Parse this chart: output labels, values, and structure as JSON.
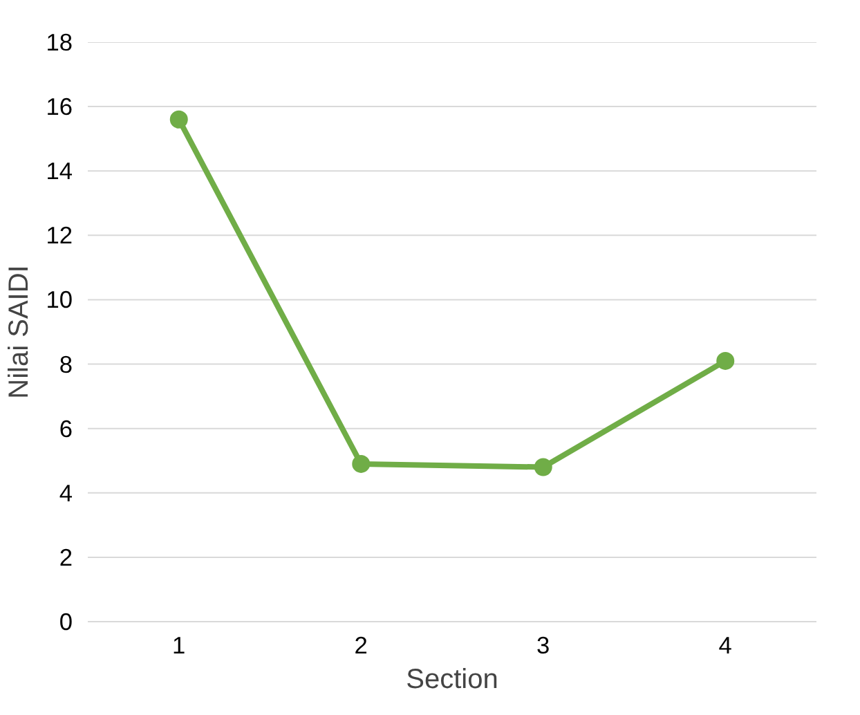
{
  "chart_data": {
    "type": "line",
    "xlabel": "Section",
    "ylabel": "Nilai SAIDI",
    "categories": [
      "1",
      "2",
      "3",
      "4"
    ],
    "series": [
      {
        "color": "#70ad47",
        "values": [
          15.6,
          4.9,
          4.8,
          8.1
        ]
      }
    ],
    "ylim": [
      0,
      18
    ],
    "yticks": [
      0,
      2,
      4,
      6,
      8,
      10,
      12,
      14,
      16,
      18
    ],
    "grid": "y",
    "marker": "circle",
    "line_style": "solid"
  }
}
